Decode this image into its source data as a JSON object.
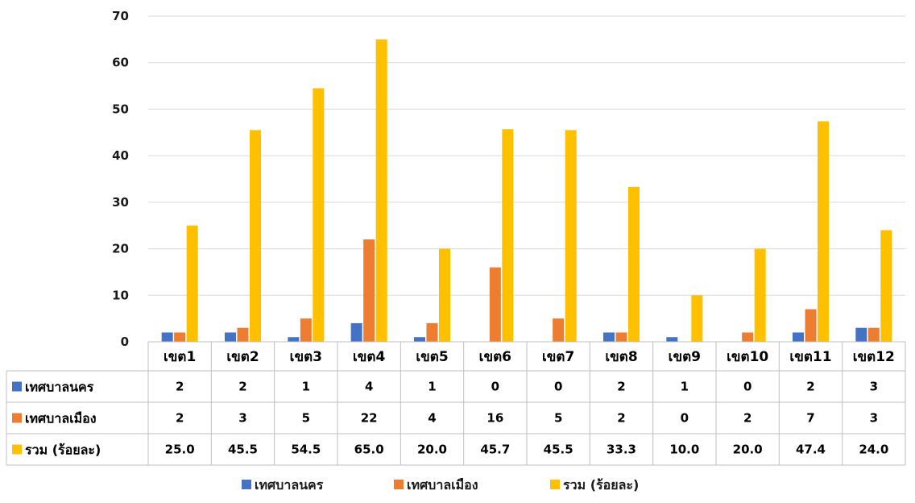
{
  "chart_data": {
    "type": "bar",
    "categories": [
      "เขต1",
      "เขต2",
      "เขต3",
      "เขต4",
      "เขต5",
      "เขต6",
      "เขต7",
      "เขต8",
      "เขต9",
      "เขต10",
      "เขต11",
      "เขต12"
    ],
    "series": [
      {
        "name": "เทศบาลนคร",
        "color": "#4472C4",
        "values": [
          2,
          2,
          1,
          4,
          1,
          0,
          0,
          2,
          1,
          0,
          2,
          3
        ],
        "labels": [
          "2",
          "2",
          "1",
          "4",
          "1",
          "0",
          "0",
          "2",
          "1",
          "0",
          "2",
          "3"
        ]
      },
      {
        "name": "เทศบาลเมือง",
        "color": "#ED7D31",
        "values": [
          2,
          3,
          5,
          22,
          4,
          16,
          5,
          2,
          0,
          2,
          7,
          3
        ],
        "labels": [
          "2",
          "3",
          "5",
          "22",
          "4",
          "16",
          "5",
          "2",
          "0",
          "2",
          "7",
          "3"
        ]
      },
      {
        "name": "รวม (ร้อยละ)",
        "color": "#FFC000",
        "values": [
          25.0,
          45.5,
          54.5,
          65.0,
          20.0,
          45.7,
          45.5,
          33.3,
          10.0,
          20.0,
          47.4,
          24.0
        ],
        "labels": [
          "25.0",
          "45.5",
          "54.5",
          "65.0",
          "20.0",
          "45.7",
          "45.5",
          "33.3",
          "10.0",
          "20.0",
          "47.4",
          "24.0"
        ]
      }
    ],
    "ylim": [
      0,
      70
    ],
    "yticks": [
      "0",
      "10",
      "20",
      "30",
      "40",
      "50",
      "60",
      "70"
    ],
    "grid": true,
    "legend": "bottom",
    "data_table": true
  }
}
